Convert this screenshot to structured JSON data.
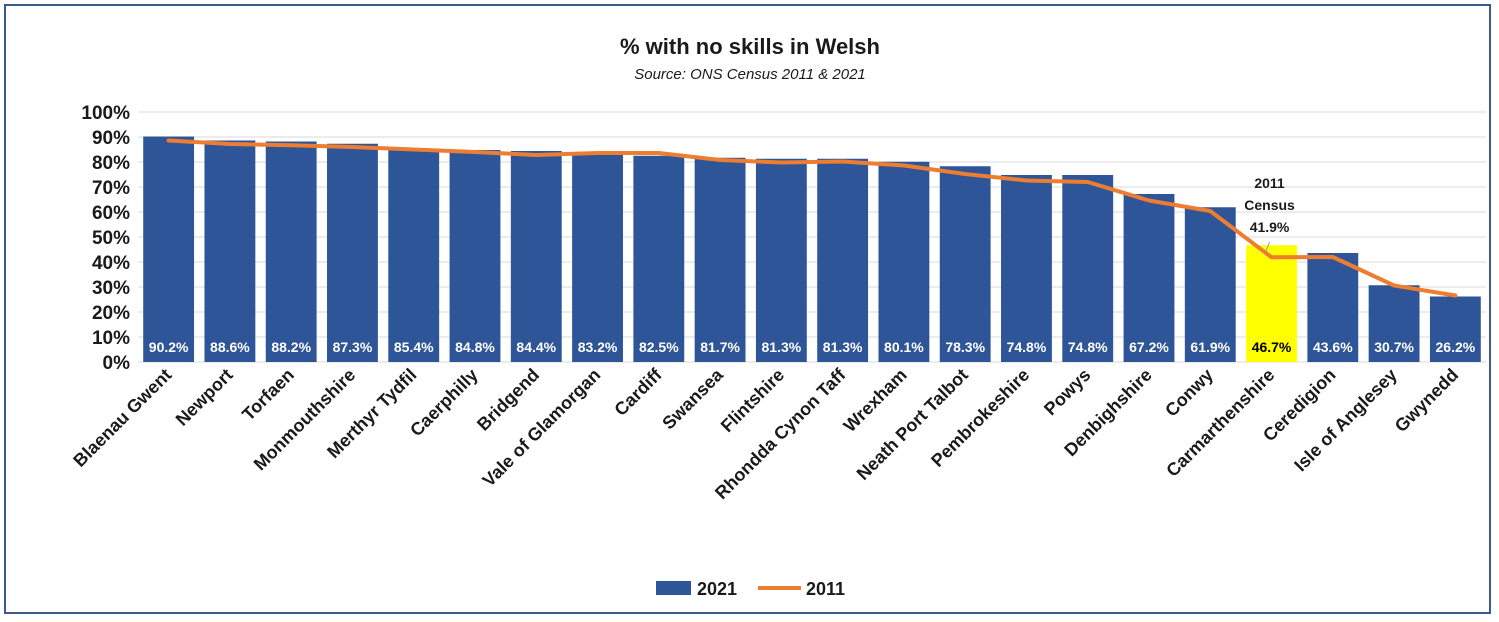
{
  "chart_data": {
    "type": "bar",
    "title": "% with no skills in Welsh",
    "subtitle": "Source: ONS Census 2011 & 2021",
    "categories": [
      "Blaenau Gwent",
      "Newport",
      "Torfaen",
      "Monmouthshire",
      "Merthyr Tydfil",
      "Caerphilly",
      "Bridgend",
      "Vale of Glamorgan",
      "Cardiff",
      "Swansea",
      "Flintshire",
      "Rhondda Cynon Taff",
      "Wrexham",
      "Neath Port Talbot",
      "Pembrokeshire",
      "Powys",
      "Denbighshire",
      "Conwy",
      "Carmarthenshire",
      "Ceredigion",
      "Isle of Anglesey",
      "Gwynedd"
    ],
    "series": [
      {
        "name": "2021",
        "type": "bar",
        "color": "#2e5597",
        "values": [
          90.2,
          88.6,
          88.2,
          87.3,
          85.4,
          84.8,
          84.4,
          83.2,
          82.5,
          81.7,
          81.3,
          81.3,
          80.1,
          78.3,
          74.8,
          74.8,
          67.2,
          61.9,
          46.7,
          43.6,
          30.7,
          26.2
        ],
        "labels": [
          "90.2%",
          "88.6%",
          "88.2%",
          "87.3%",
          "85.4%",
          "84.8%",
          "84.4%",
          "83.2%",
          "82.5%",
          "81.7%",
          "81.3%",
          "81.3%",
          "80.1%",
          "78.3%",
          "74.8%",
          "74.8%",
          "67.2%",
          "61.9%",
          "46.7%",
          "43.6%",
          "30.7%",
          "26.2%"
        ]
      },
      {
        "name": "2011",
        "type": "line",
        "color": "#ed7d31",
        "values": [
          88.6,
          87.2,
          86.7,
          86.0,
          85.0,
          84.0,
          82.8,
          83.6,
          83.6,
          80.8,
          79.8,
          80.2,
          78.6,
          75.2,
          72.6,
          72.0,
          64.6,
          60.4,
          41.9,
          42.0,
          30.6,
          26.6
        ]
      }
    ],
    "highlight": {
      "category": "Carmarthenshire",
      "color": "#ffff00",
      "label_color": "#000000"
    },
    "annotation": {
      "category": "Carmarthenshire",
      "lines": [
        "2011",
        "Census",
        "41.9%"
      ]
    },
    "yticks": [
      "0%",
      "10%",
      "20%",
      "30%",
      "40%",
      "50%",
      "60%",
      "70%",
      "80%",
      "90%",
      "100%"
    ],
    "ylim": [
      0,
      100
    ],
    "grid": true,
    "legend": "bottom-center",
    "xlabel": "",
    "ylabel": ""
  }
}
